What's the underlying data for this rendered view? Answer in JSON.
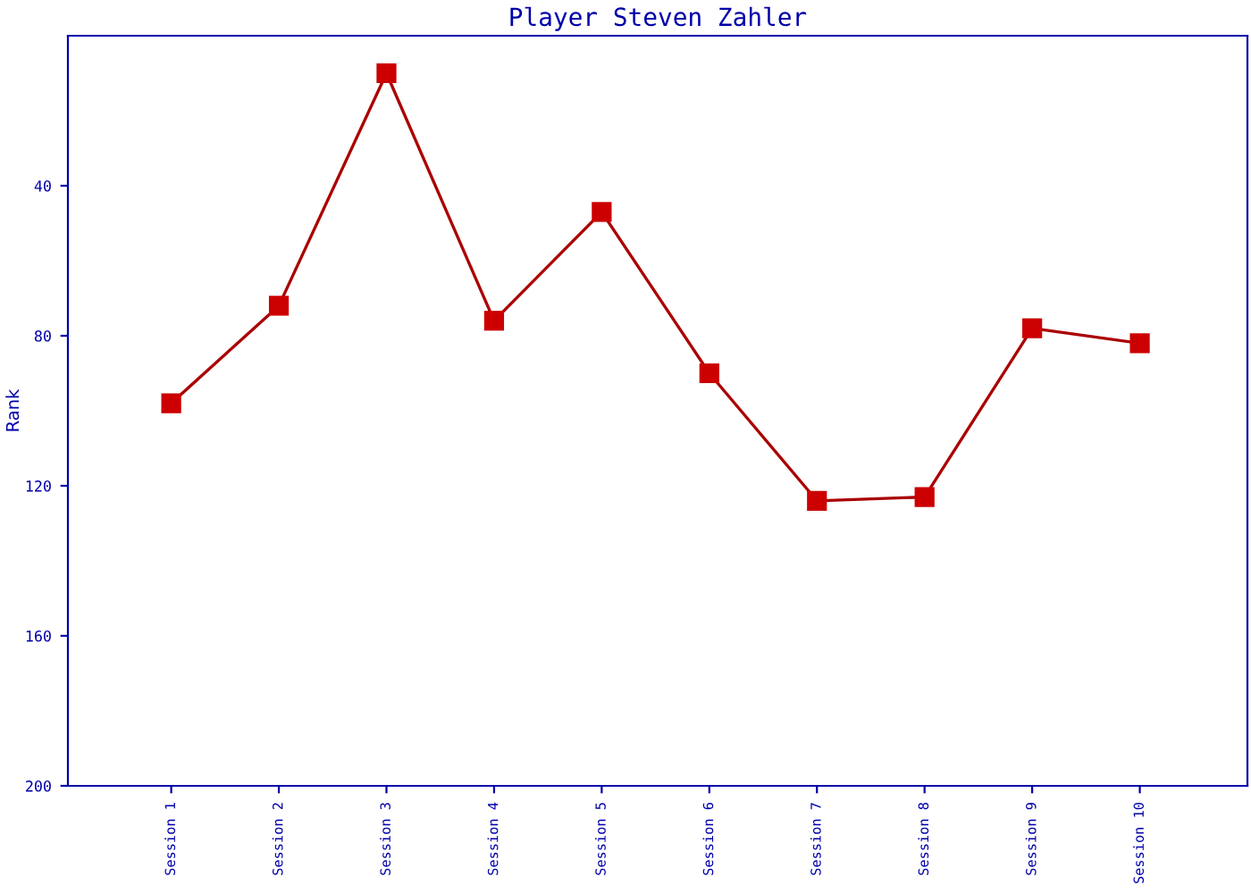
{
  "chart_data": {
    "type": "line",
    "title": "Player Steven Zahler",
    "ylabel": "Rank",
    "categories": [
      "Session 1",
      "Session 2",
      "Session 3",
      "Session 4",
      "Session 5",
      "Session 6",
      "Session 7",
      "Session 8",
      "Session 9",
      "Session 10"
    ],
    "series": [
      {
        "color": "#aa0000",
        "values": [
          98,
          72,
          10,
          76,
          47,
          90,
          124,
          123,
          78,
          82
        ]
      }
    ],
    "ylim": [
      200,
      0
    ],
    "yticks": [
      40,
      80,
      120,
      160,
      200
    ],
    "marker": "square",
    "line_style": "solid",
    "grid": false,
    "legend": false
  }
}
